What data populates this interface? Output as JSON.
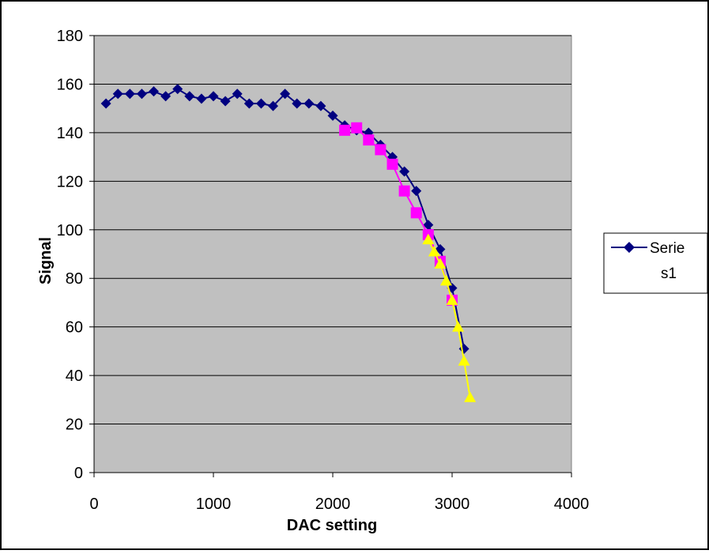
{
  "chart_data": {
    "type": "line",
    "xlabel": "DAC setting",
    "ylabel": "Signal",
    "xlim": [
      0,
      4000
    ],
    "ylim": [
      0,
      180
    ],
    "x_ticks": [
      0,
      1000,
      2000,
      3000,
      4000
    ],
    "y_ticks": [
      0,
      20,
      40,
      60,
      80,
      100,
      120,
      140,
      160,
      180
    ],
    "grid": "horizontal",
    "legend_position": "right",
    "plot_background": "#c0c0c0",
    "series": [
      {
        "name": "Serie s1",
        "legend_lines": [
          "Serie",
          "s1"
        ],
        "color": "#000080",
        "marker": "diamond",
        "x": [
          100,
          200,
          300,
          400,
          500,
          600,
          700,
          800,
          900,
          1000,
          1100,
          1200,
          1300,
          1400,
          1500,
          1600,
          1700,
          1800,
          1900,
          2000,
          2100,
          2200,
          2300,
          2400,
          2500,
          2600,
          2700,
          2800,
          2900,
          3000,
          3100
        ],
        "y": [
          152,
          156,
          156,
          156,
          157,
          155,
          158,
          155,
          154,
          155,
          153,
          156,
          152,
          152,
          151,
          156,
          152,
          152,
          151,
          147,
          143,
          141,
          140,
          135,
          130,
          124,
          116,
          102,
          92,
          76,
          51
        ]
      },
      {
        "color": "#ff00ff",
        "marker": "square",
        "x": [
          2100,
          2200,
          2300,
          2400,
          2500,
          2600,
          2700,
          2800,
          2900,
          3000
        ],
        "y": [
          141,
          142,
          137,
          133,
          127,
          116,
          107,
          98,
          87,
          71
        ]
      },
      {
        "color": "#ffff00",
        "marker": "triangle",
        "x": [
          2800,
          2850,
          2900,
          2950,
          3000,
          3050,
          3100,
          3150
        ],
        "y": [
          96,
          91,
          86,
          79,
          71,
          60,
          46,
          31
        ]
      }
    ]
  }
}
